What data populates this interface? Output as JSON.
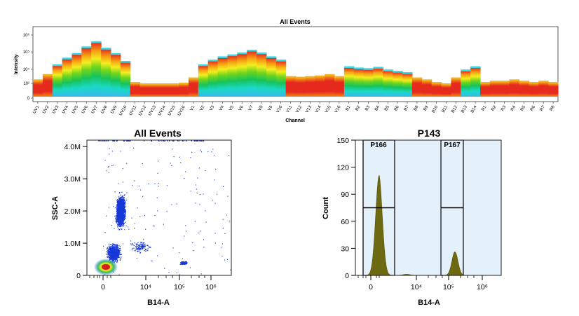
{
  "chart_data": [
    {
      "type": "heatmap",
      "title": "All Events",
      "xlabel": "Channel",
      "ylabel": "Intensity",
      "y_scale": "log",
      "y_tick_labels": [
        "0",
        "10²",
        "10⁴",
        "10⁵",
        "10⁶"
      ],
      "categories": [
        "UV1",
        "UV2",
        "UV3",
        "UV4",
        "UV5",
        "UV6",
        "UV7",
        "UV8",
        "UV9",
        "UV10",
        "UV11",
        "UV12",
        "UV13",
        "UV14",
        "UV15",
        "UV16",
        "V1",
        "V2",
        "V3",
        "V4",
        "V5",
        "V6",
        "V7",
        "V8",
        "V9",
        "V10",
        "V11",
        "V12",
        "V13",
        "V14",
        "V15",
        "V16",
        "B1",
        "B2",
        "B3",
        "B4",
        "B5",
        "B6",
        "B7",
        "B8",
        "B9",
        "B10",
        "B11",
        "B12",
        "B13",
        "B14",
        "R1",
        "R2",
        "R3",
        "R4",
        "R5",
        "R6",
        "R7",
        "R8"
      ],
      "band_top": [
        0.22,
        0.3,
        0.45,
        0.55,
        0.62,
        0.72,
        0.8,
        0.7,
        0.62,
        0.5,
        0.18,
        0.16,
        0.16,
        0.16,
        0.16,
        0.17,
        0.25,
        0.45,
        0.52,
        0.57,
        0.6,
        0.63,
        0.67,
        0.63,
        0.57,
        0.52,
        0.27,
        0.26,
        0.27,
        0.28,
        0.3,
        0.27,
        0.42,
        0.4,
        0.39,
        0.41,
        0.37,
        0.35,
        0.33,
        0.25,
        0.22,
        0.18,
        0.16,
        0.25,
        0.37,
        0.42,
        0.18,
        0.2,
        0.2,
        0.22,
        0.2,
        0.18,
        0.2,
        0.18
      ]
    },
    {
      "type": "scatter",
      "title": "All Events",
      "xlabel": "B14-A",
      "ylabel": "SSC-A",
      "x_scale": "biexponential",
      "x_tick_labels": [
        "0",
        "10⁴",
        "10⁵",
        "10⁶"
      ],
      "y_tick_labels": [
        "0",
        "1.0M",
        "2.0M",
        "3.0M",
        "4.0M"
      ],
      "ylim": [
        0,
        4200000
      ],
      "populations": [
        {
          "center_x": 100,
          "center_y": 250000,
          "density": "very high"
        },
        {
          "center_x": 2000,
          "center_y": 2000000,
          "density": "high"
        },
        {
          "center_x": 150000,
          "center_y": 400000,
          "density": "low"
        }
      ]
    },
    {
      "type": "histogram",
      "title": "P143",
      "xlabel": "B14-A",
      "ylabel": "Count",
      "x_scale": "biexponential",
      "x_tick_labels": [
        "0",
        "10⁴",
        "10⁵",
        "10⁶"
      ],
      "y_tick_labels": [
        "0",
        "30",
        "60",
        "90",
        "120",
        "150"
      ],
      "ylim": [
        0,
        150
      ],
      "peaks": [
        {
          "x_position": "near 0",
          "count": 111
        },
        {
          "x_position": "about 10⁵",
          "count": 26
        }
      ],
      "gates": [
        {
          "name": "P166",
          "level": 75
        },
        {
          "name": "P167",
          "level": 75
        }
      ]
    }
  ]
}
